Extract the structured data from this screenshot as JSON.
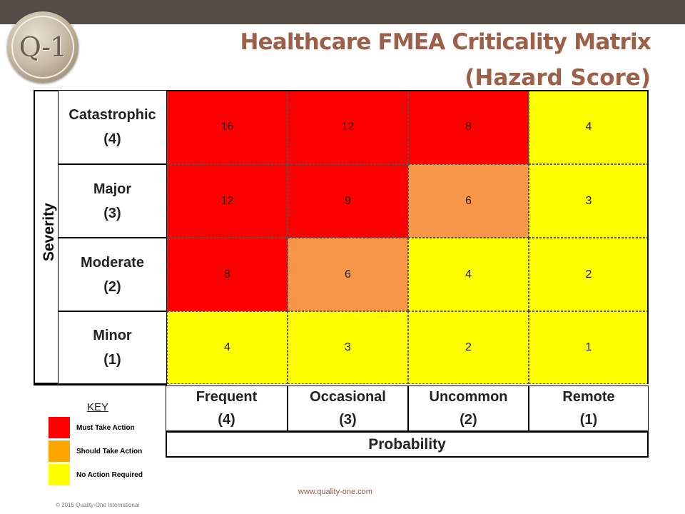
{
  "header": {
    "logo_text": "Q-1",
    "title_line1": "Healthcare FMEA Criticality Matrix",
    "title_line2": "(Hazard Score)"
  },
  "matrix": {
    "severity_axis_label": "Severity",
    "probability_axis_label": "Probability",
    "rows": [
      {
        "name": "Catastrophic",
        "score": "(4)",
        "cells": [
          "16",
          "12",
          "8",
          "4"
        ],
        "levels": [
          "must",
          "must",
          "must",
          "none"
        ]
      },
      {
        "name": "Major",
        "score": "(3)",
        "cells": [
          "12",
          "9",
          "6",
          "3"
        ],
        "levels": [
          "must",
          "must",
          "should",
          "none"
        ]
      },
      {
        "name": "Moderate",
        "score": "(2)",
        "cells": [
          "8",
          "6",
          "4",
          "2"
        ],
        "levels": [
          "must",
          "should",
          "none",
          "none"
        ]
      },
      {
        "name": "Minor",
        "score": "(1)",
        "cells": [
          "4",
          "3",
          "2",
          "1"
        ],
        "levels": [
          "none",
          "none",
          "none",
          "none"
        ]
      }
    ],
    "columns": [
      {
        "name": "Frequent",
        "score": "(4)"
      },
      {
        "name": "Occasional",
        "score": "(3)"
      },
      {
        "name": "Uncommon",
        "score": "(2)"
      },
      {
        "name": "Remote",
        "score": "(1)"
      }
    ]
  },
  "key": {
    "title": "KEY",
    "items": [
      {
        "label": "Must Take Action",
        "color": "#ff0000"
      },
      {
        "label": "Should Take Action",
        "color": "#ffa500"
      },
      {
        "label": "No Action Required",
        "color": "#ffff00"
      }
    ]
  },
  "colors": {
    "must": "#ff0000",
    "should": "#f79646",
    "none": "#ffff00",
    "title": "#9c6048",
    "topbar": "#554d48"
  },
  "footer": {
    "url": "www.quality-one.com",
    "copyright": "© 2015 Quality-One International"
  }
}
